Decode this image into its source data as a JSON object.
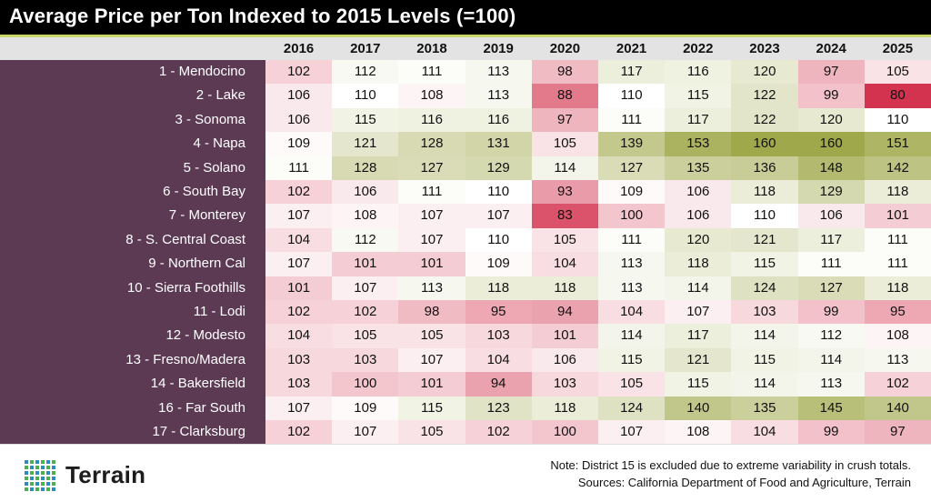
{
  "chart_data": {
    "type": "heatmap",
    "title": "Average Price per Ton Indexed to 2015 Levels (=100)",
    "columns": [
      "2016",
      "2017",
      "2018",
      "2019",
      "2020",
      "2021",
      "2022",
      "2023",
      "2024",
      "2025"
    ],
    "rows": [
      "1 - Mendocino",
      "2 - Lake",
      "3 - Sonoma",
      "4 - Napa",
      "5 - Solano",
      "6 - South Bay",
      "7 - Monterey",
      "8 - S. Central Coast",
      "9 - Northern Cal",
      "10 - Sierra Foothills",
      "11 - Lodi",
      "12 - Modesto",
      "13 - Fresno/Madera",
      "14 - Bakersfield",
      "16 - Far South",
      "17 - Clarksburg"
    ],
    "values": [
      [
        102,
        112,
        111,
        113,
        98,
        117,
        116,
        120,
        97,
        105
      ],
      [
        106,
        110,
        108,
        113,
        88,
        110,
        115,
        122,
        99,
        80
      ],
      [
        106,
        115,
        116,
        116,
        97,
        111,
        117,
        122,
        120,
        110
      ],
      [
        109,
        121,
        128,
        131,
        105,
        139,
        153,
        160,
        160,
        151
      ],
      [
        111,
        128,
        127,
        129,
        114,
        127,
        135,
        136,
        148,
        142
      ],
      [
        102,
        106,
        111,
        110,
        93,
        109,
        106,
        118,
        129,
        118
      ],
      [
        107,
        108,
        107,
        107,
        83,
        100,
        106,
        110,
        106,
        101
      ],
      [
        104,
        112,
        107,
        110,
        105,
        111,
        120,
        121,
        117,
        111
      ],
      [
        107,
        101,
        101,
        109,
        104,
        113,
        118,
        115,
        111,
        111
      ],
      [
        101,
        107,
        113,
        118,
        118,
        113,
        114,
        124,
        127,
        118
      ],
      [
        102,
        102,
        98,
        95,
        94,
        104,
        107,
        103,
        99,
        95
      ],
      [
        104,
        105,
        105,
        103,
        101,
        114,
        117,
        114,
        112,
        108
      ],
      [
        103,
        103,
        107,
        104,
        106,
        115,
        121,
        115,
        114,
        113
      ],
      [
        103,
        100,
        101,
        94,
        103,
        105,
        115,
        114,
        113,
        102
      ],
      [
        107,
        109,
        115,
        123,
        118,
        124,
        140,
        135,
        145,
        140
      ],
      [
        102,
        107,
        105,
        102,
        100,
        107,
        108,
        104,
        99,
        97
      ]
    ],
    "color_scale": {
      "low": "#d4334f",
      "mid": "#ffffff",
      "high": "#9fa84a"
    }
  },
  "footer": {
    "logo_text": "Terrain",
    "logo_colors": [
      "#2e8bc0",
      "#4caf50"
    ],
    "note": "Note: District 15 is excluded due to extreme variability in crush totals.",
    "sources": "Sources: California Department of Food and Agriculture, Terrain"
  }
}
